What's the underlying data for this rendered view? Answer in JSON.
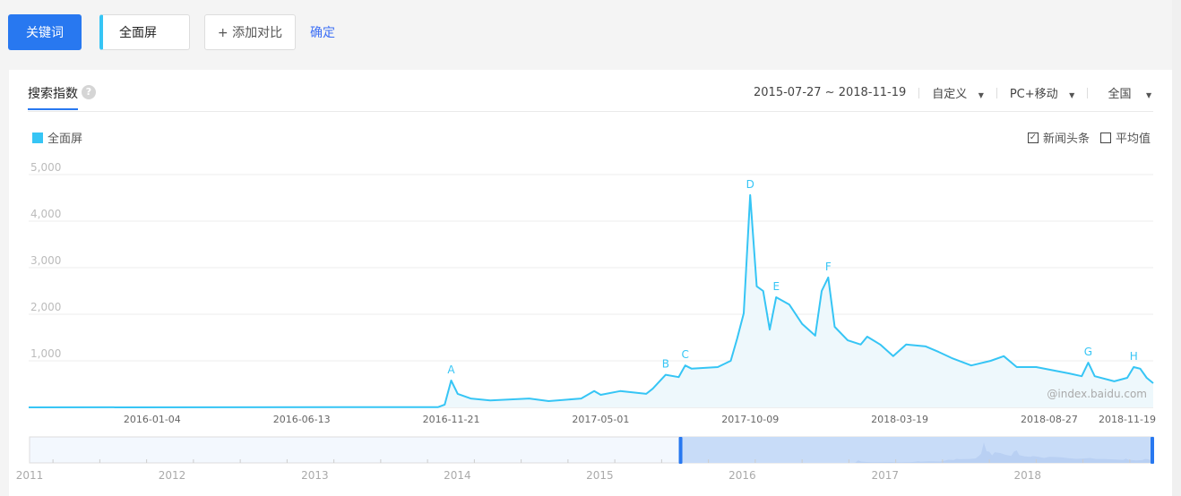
{
  "toolbar": {
    "keyword_label": "关键词",
    "keyword_value": "全面屏",
    "add_compare": "+ 添加对比",
    "confirm": "确定"
  },
  "panel": {
    "tab": "搜索指数",
    "help_icon": "question-icon",
    "date_range": "2015-07-27 ~ 2018-11-19",
    "period": "自定义",
    "device": "PC+移动",
    "region": "全国",
    "legend": "全面屏",
    "news_checkbox": {
      "label": "新闻头条",
      "checked": true
    },
    "avg_checkbox": {
      "label": "平均值",
      "checked": false
    },
    "watermark": "@index.baidu.com"
  },
  "colors": {
    "accent": "#2878f0",
    "series": "#36c5f5",
    "link": "#3d6ff5"
  },
  "chart_data": {
    "type": "area",
    "xrange": [
      "2015-07-27",
      "2018-11-19"
    ],
    "ylim": [
      0,
      5000
    ],
    "yticks": [
      "1,000",
      "2,000",
      "3,000",
      "4,000",
      "5,000"
    ],
    "ytick_values": [
      1000,
      2000,
      3000,
      4000,
      5000
    ],
    "xticks": [
      "2016-01-04",
      "2016-06-13",
      "2016-11-21",
      "2017-05-01",
      "2017-10-09",
      "2018-03-19",
      "2018-08-27",
      "2018-11-19"
    ],
    "grid": true,
    "legend": "top-left",
    "series": [
      {
        "name": "全面屏",
        "points": [
          [
            "2015-07-27",
            0
          ],
          [
            "2016-10-10",
            5
          ],
          [
            "2016-10-17",
            60
          ],
          [
            "2016-10-24",
            577
          ],
          [
            "2016-10-31",
            290
          ],
          [
            "2016-11-14",
            190
          ],
          [
            "2016-12-05",
            150
          ],
          [
            "2017-01-16",
            190
          ],
          [
            "2017-02-06",
            135
          ],
          [
            "2017-03-13",
            190
          ],
          [
            "2017-03-27",
            350
          ],
          [
            "2017-04-03",
            270
          ],
          [
            "2017-04-24",
            350
          ],
          [
            "2017-05-22",
            290
          ],
          [
            "2017-05-29",
            400
          ],
          [
            "2017-06-12",
            700
          ],
          [
            "2017-06-26",
            650
          ],
          [
            "2017-07-03",
            900
          ],
          [
            "2017-07-10",
            830
          ],
          [
            "2017-08-07",
            865
          ],
          [
            "2017-08-21",
            1000
          ],
          [
            "2017-08-28",
            1480
          ],
          [
            "2017-09-04",
            2020
          ],
          [
            "2017-09-11",
            4560
          ],
          [
            "2017-09-18",
            2600
          ],
          [
            "2017-09-25",
            2500
          ],
          [
            "2017-10-02",
            1670
          ],
          [
            "2017-10-09",
            2365
          ],
          [
            "2017-10-23",
            2210
          ],
          [
            "2017-11-06",
            1790
          ],
          [
            "2017-11-20",
            1540
          ],
          [
            "2017-11-27",
            2500
          ],
          [
            "2017-12-04",
            2790
          ],
          [
            "2017-12-11",
            1730
          ],
          [
            "2017-12-25",
            1440
          ],
          [
            "2018-01-08",
            1350
          ],
          [
            "2018-01-15",
            1520
          ],
          [
            "2018-01-29",
            1350
          ],
          [
            "2018-02-12",
            1100
          ],
          [
            "2018-02-26",
            1350
          ],
          [
            "2018-03-19",
            1310
          ],
          [
            "2018-04-02",
            1190
          ],
          [
            "2018-04-16",
            1060
          ],
          [
            "2018-05-07",
            900
          ],
          [
            "2018-05-28",
            1000
          ],
          [
            "2018-06-11",
            1100
          ],
          [
            "2018-06-25",
            865
          ],
          [
            "2018-07-16",
            865
          ],
          [
            "2018-08-20",
            730
          ],
          [
            "2018-09-03",
            670
          ],
          [
            "2018-09-10",
            960
          ],
          [
            "2018-09-17",
            670
          ],
          [
            "2018-10-08",
            560
          ],
          [
            "2018-10-22",
            635
          ],
          [
            "2018-10-29",
            865
          ],
          [
            "2018-11-05",
            830
          ],
          [
            "2018-11-12",
            635
          ],
          [
            "2018-11-19",
            520
          ]
        ]
      }
    ],
    "annotations": [
      {
        "label": "A",
        "date": "2016-10-24"
      },
      {
        "label": "B",
        "date": "2017-06-12"
      },
      {
        "label": "C",
        "date": "2017-07-03"
      },
      {
        "label": "D",
        "date": "2017-09-11"
      },
      {
        "label": "E",
        "date": "2017-10-09"
      },
      {
        "label": "F",
        "date": "2017-12-04"
      },
      {
        "label": "G",
        "date": "2018-09-10"
      },
      {
        "label": "H",
        "date": "2018-10-29"
      }
    ]
  },
  "navigator": {
    "years": [
      "2011",
      "2012",
      "2013",
      "2014",
      "2015",
      "2016",
      "2017",
      "2018"
    ],
    "selection": [
      "2015-07-27",
      "2018-11-19"
    ]
  }
}
